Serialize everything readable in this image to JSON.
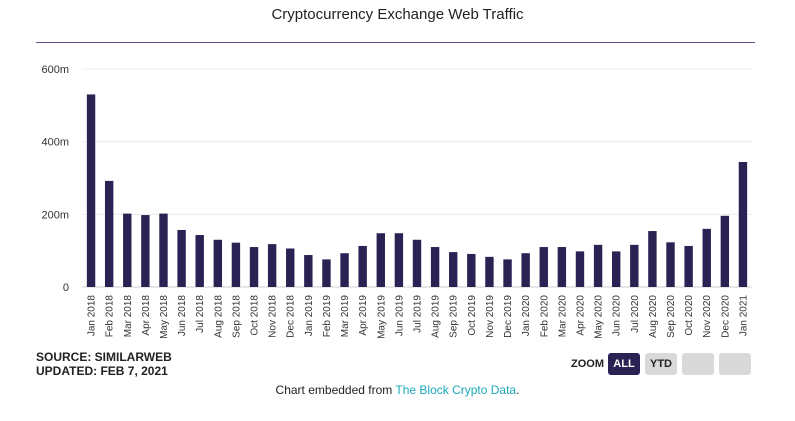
{
  "chart_data": {
    "type": "bar",
    "title": "Cryptocurrency Exchange Web Traffic",
    "xlabel": "",
    "ylabel": "",
    "ylim": [
      0,
      600
    ],
    "y_ticks": [
      "0",
      "200m",
      "400m",
      "600m"
    ],
    "y_tick_values": [
      0,
      200,
      400,
      600
    ],
    "grid": true,
    "bar_color": "#2b2254",
    "categories": [
      "Jan 2018",
      "Feb 2018",
      "Mar 2018",
      "Apr 2018",
      "May 2018",
      "Jun 2018",
      "Jul 2018",
      "Aug 2018",
      "Sep 2018",
      "Oct 2018",
      "Nov 2018",
      "Dec 2018",
      "Jan 2019",
      "Feb 2019",
      "Mar 2019",
      "Apr 2019",
      "May 2019",
      "Jun 2019",
      "Jul 2019",
      "Aug 2019",
      "Sep 2019",
      "Oct 2019",
      "Nov 2019",
      "Dec 2019",
      "Jan 2020",
      "Feb 2020",
      "Mar 2020",
      "Apr 2020",
      "May 2020",
      "Jun 2020",
      "Jul 2020",
      "Aug 2020",
      "Sep 2020",
      "Oct 2020",
      "Nov 2020",
      "Dec 2020",
      "Jan 2021"
    ],
    "values": [
      530,
      292,
      202,
      198,
      202,
      157,
      143,
      130,
      122,
      110,
      118,
      106,
      88,
      76,
      93,
      113,
      148,
      148,
      130,
      110,
      96,
      91,
      83,
      76,
      93,
      110,
      110,
      98,
      116,
      98,
      116,
      154,
      123,
      113,
      160,
      196,
      344
    ]
  },
  "footer": {
    "source": "SOURCE: SIMILARWEB",
    "updated": "UPDATED: FEB 7, 2021",
    "embed_prefix": "Chart embedded from ",
    "embed_link": "The Block Crypto Data",
    "embed_suffix": "."
  },
  "zoom": {
    "label": "ZOOM",
    "all": "ALL",
    "ytd": "YTD"
  }
}
